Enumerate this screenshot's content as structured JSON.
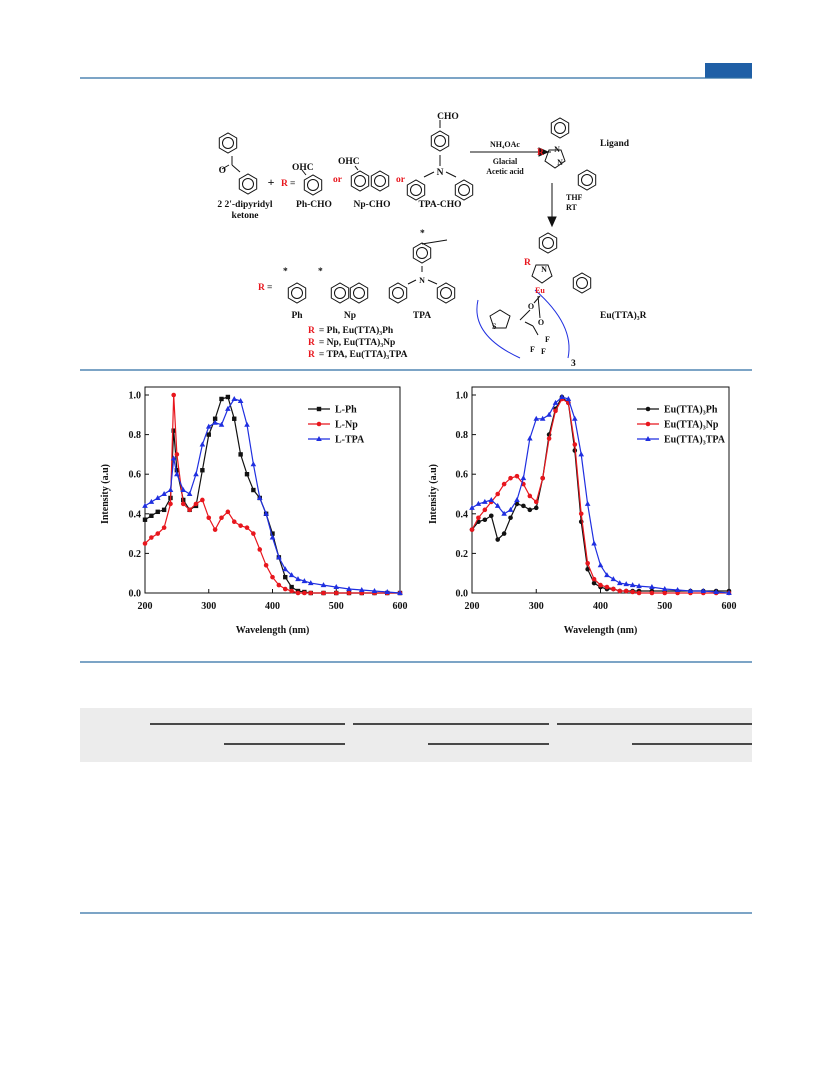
{
  "scheme": {
    "tpa_cho_group": "CHO",
    "ketone_name": [
      "2 2'-dipyridyl",
      "ketone"
    ],
    "ketone_o": "O",
    "plus": "+",
    "r_symbol": "R",
    "r_equals": "=",
    "ohc": "OHC",
    "or": "or",
    "aldehydes": [
      "Ph-CHO",
      "Np-CHO",
      "TPA-CHO"
    ],
    "step1": [
      "NH₄OAc",
      "Glacial",
      "Acetic acid"
    ],
    "ligand": "Ligand",
    "step2": [
      "THF",
      "RT"
    ],
    "n_atom": "N",
    "eu_atom": "Eu",
    "s_atom": "S",
    "f_atom": "F",
    "count": "3",
    "complex": "Eu(TTA)₃R",
    "groups": [
      "Ph",
      "Np",
      "TPA"
    ],
    "star": "*",
    "legend": [
      {
        "r": "R",
        "text": "= Ph,    Eu(TTA)₃Ph"
      },
      {
        "r": "R",
        "text": "= Np,    Eu(TTA)₃Np"
      },
      {
        "r": "R",
        "text": "= TPA, Eu(TTA)₃TPA"
      }
    ]
  },
  "chart_data": [
    {
      "type": "line",
      "xlabel": "Wavelength (nm)",
      "ylabel": "Intensity (a.u)",
      "x": [
        200,
        210,
        220,
        230,
        240,
        245,
        250,
        260,
        270,
        280,
        290,
        300,
        310,
        320,
        330,
        340,
        350,
        360,
        370,
        380,
        390,
        400,
        410,
        420,
        430,
        440,
        450,
        460,
        480,
        500,
        520,
        540,
        560,
        580,
        600
      ],
      "xlim": [
        200,
        600
      ],
      "xticks": [
        200,
        300,
        400,
        500,
        600
      ],
      "ylim": [
        0,
        1.0
      ],
      "yticks": [
        {
          "value": 0,
          "label": "0.0"
        },
        0.2,
        0.4,
        0.6,
        0.8,
        {
          "value": 1.0,
          "label": "1.0"
        }
      ],
      "legend": "upper right",
      "series": [
        {
          "name": "L-Ph",
          "color": "#111111",
          "marker": "square",
          "values": [
            0.37,
            0.39,
            0.41,
            0.42,
            0.48,
            0.82,
            0.62,
            0.47,
            0.42,
            0.44,
            0.62,
            0.8,
            0.88,
            0.98,
            0.99,
            0.88,
            0.7,
            0.6,
            0.52,
            0.48,
            0.4,
            0.3,
            0.18,
            0.08,
            0.03,
            0.01,
            0.005,
            0,
            0,
            0,
            0,
            0,
            0,
            0,
            0
          ]
        },
        {
          "name": "L-Np",
          "color": "#e8161d",
          "marker": "circle",
          "values": [
            0.25,
            0.28,
            0.3,
            0.33,
            0.45,
            1.0,
            0.7,
            0.45,
            0.42,
            0.45,
            0.47,
            0.38,
            0.32,
            0.38,
            0.41,
            0.36,
            0.34,
            0.33,
            0.3,
            0.22,
            0.14,
            0.08,
            0.04,
            0.02,
            0.01,
            0,
            0,
            0,
            0,
            0,
            0,
            0,
            0,
            0,
            0
          ]
        },
        {
          "name": "L-TPA",
          "color": "#1f2fe0",
          "marker": "triangle",
          "values": [
            0.44,
            0.46,
            0.48,
            0.5,
            0.52,
            0.68,
            0.6,
            0.52,
            0.5,
            0.6,
            0.75,
            0.84,
            0.86,
            0.85,
            0.93,
            0.98,
            0.97,
            0.85,
            0.65,
            0.48,
            0.4,
            0.28,
            0.18,
            0.12,
            0.09,
            0.07,
            0.06,
            0.05,
            0.04,
            0.03,
            0.02,
            0.015,
            0.01,
            0.005,
            0
          ]
        }
      ]
    },
    {
      "type": "line",
      "xlabel": "Wavelength (nm)",
      "ylabel": "Intensity (a.u)",
      "x": [
        200,
        210,
        220,
        230,
        240,
        250,
        260,
        270,
        280,
        290,
        300,
        310,
        320,
        330,
        340,
        350,
        360,
        370,
        380,
        390,
        400,
        410,
        420,
        430,
        440,
        450,
        460,
        480,
        500,
        520,
        540,
        560,
        580,
        600
      ],
      "xlim": [
        200,
        600
      ],
      "xticks": [
        200,
        300,
        400,
        500,
        600
      ],
      "ylim": [
        0,
        1.0
      ],
      "yticks": [
        {
          "value": 0,
          "label": "0.0"
        },
        0.2,
        0.4,
        0.6,
        0.8,
        {
          "value": 1.0,
          "label": "1.0"
        }
      ],
      "legend": "upper right",
      "series": [
        {
          "name": "Eu(TTA)₃Ph",
          "color": "#111111",
          "marker": "circle",
          "values": [
            0.32,
            0.36,
            0.37,
            0.39,
            0.27,
            0.3,
            0.38,
            0.45,
            0.44,
            0.42,
            0.43,
            0.58,
            0.8,
            0.93,
            0.99,
            0.96,
            0.72,
            0.36,
            0.12,
            0.05,
            0.03,
            0.02,
            0.02,
            0.01,
            0.01,
            0.01,
            0.01,
            0.01,
            0.01,
            0.01,
            0.01,
            0.01,
            0.01,
            0.01
          ]
        },
        {
          "name": "Eu(TTA)₃Np",
          "color": "#e8161d",
          "marker": "circle",
          "values": [
            0.32,
            0.38,
            0.42,
            0.46,
            0.5,
            0.55,
            0.58,
            0.59,
            0.55,
            0.49,
            0.46,
            0.58,
            0.78,
            0.92,
            0.98,
            0.96,
            0.75,
            0.4,
            0.15,
            0.07,
            0.04,
            0.03,
            0.02,
            0.01,
            0.01,
            0.005,
            0,
            0,
            0,
            0,
            0,
            0,
            0,
            0
          ]
        },
        {
          "name": "Eu(TTA)₃TPA",
          "color": "#1f2fe0",
          "marker": "triangle",
          "values": [
            0.43,
            0.45,
            0.46,
            0.47,
            0.44,
            0.4,
            0.42,
            0.47,
            0.58,
            0.78,
            0.88,
            0.88,
            0.9,
            0.96,
            0.99,
            0.98,
            0.88,
            0.7,
            0.45,
            0.25,
            0.14,
            0.09,
            0.07,
            0.05,
            0.045,
            0.04,
            0.035,
            0.03,
            0.02,
            0.015,
            0.01,
            0.01,
            0.005,
            0
          ]
        }
      ]
    }
  ]
}
